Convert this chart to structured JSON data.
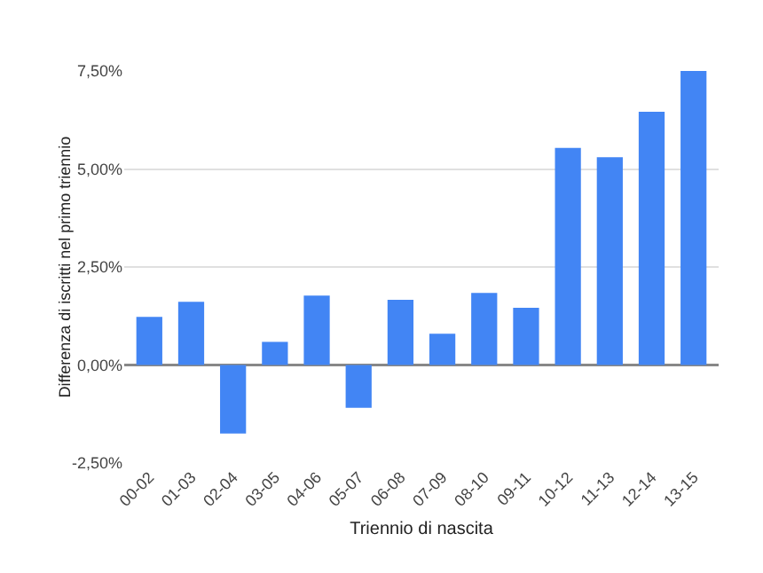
{
  "chart_data": {
    "type": "bar",
    "xlabel": "Triennio di nascita",
    "ylabel": "Differenza di iscritti nel primo triennio",
    "categories": [
      "00-02",
      "01-03",
      "02-04",
      "03-05",
      "04-06",
      "05-07",
      "06-08",
      "07-09",
      "08-10",
      "09-11",
      "10-12",
      "11-13",
      "12-14",
      "13-15"
    ],
    "values": [
      1.23,
      1.61,
      -1.75,
      0.59,
      1.77,
      -1.09,
      1.66,
      0.8,
      1.84,
      1.46,
      5.54,
      5.3,
      6.46,
      7.5
    ],
    "color": "#4285f4",
    "ylim": [
      -2.5,
      7.5
    ],
    "yticks": [
      {
        "value": -2.5,
        "label": "-2,50%"
      },
      {
        "value": 0,
        "label": "0,00%"
      },
      {
        "value": 2.5,
        "label": "2,50%"
      },
      {
        "value": 5,
        "label": "5,00%"
      },
      {
        "value": 7.5,
        "label": "7,50%"
      }
    ],
    "grid": "y"
  }
}
